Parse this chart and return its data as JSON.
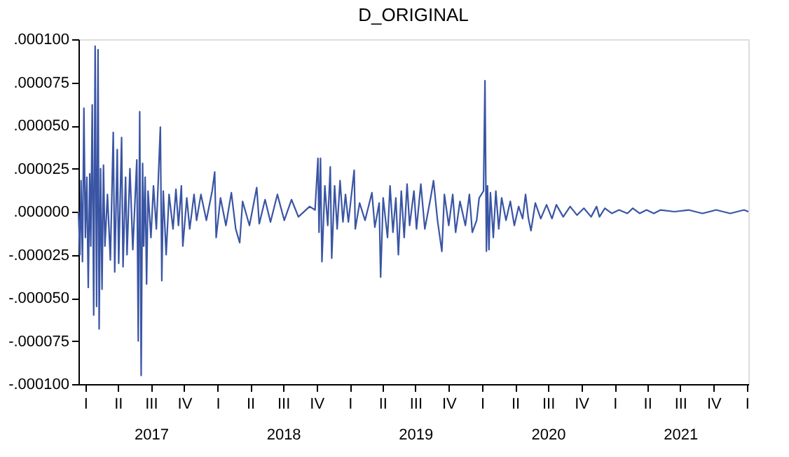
{
  "chart_data": {
    "type": "line",
    "title": "D_ORIGINAL",
    "x": [
      "2016-12-13",
      "2016-12-17",
      "2016-12-20",
      "2016-12-24",
      "2016-12-28",
      "2017-01-01",
      "2017-01-05",
      "2017-01-09",
      "2017-01-13",
      "2017-01-16",
      "2017-01-20",
      "2017-01-24",
      "2017-01-28",
      "2017-02-01",
      "2017-02-05",
      "2017-02-08",
      "2017-02-12",
      "2017-02-16",
      "2017-02-20",
      "2017-02-24",
      "2017-03-03",
      "2017-03-11",
      "2017-03-19",
      "2017-03-23",
      "2017-03-30",
      "2017-04-03",
      "2017-04-11",
      "2017-04-15",
      "2017-04-22",
      "2017-04-26",
      "2017-05-04",
      "2017-05-12",
      "2017-05-23",
      "2017-05-27",
      "2017-05-31",
      "2017-06-04",
      "2017-06-08",
      "2017-06-11",
      "2017-06-15",
      "2017-06-19",
      "2017-06-23",
      "2017-07-01",
      "2017-07-08",
      "2017-07-16",
      "2017-07-27",
      "2017-07-31",
      "2017-08-04",
      "2017-08-12",
      "2017-08-20",
      "2017-08-31",
      "2017-09-08",
      "2017-09-15",
      "2017-09-23",
      "2017-09-27",
      "2017-10-08",
      "2017-10-16",
      "2017-10-28",
      "2017-11-04",
      "2017-11-16",
      "2017-12-01",
      "2017-12-17",
      "2017-12-24",
      "2017-12-28",
      "2018-01-09",
      "2018-01-24",
      "2018-02-08",
      "2018-02-20",
      "2018-03-03",
      "2018-03-11",
      "2018-03-30",
      "2018-04-19",
      "2018-04-26",
      "2018-05-12",
      "2018-05-27",
      "2018-06-15",
      "2018-07-04",
      "2018-07-24",
      "2018-08-12",
      "2018-09-12",
      "2018-09-27",
      "2018-10-05",
      "2018-10-08",
      "2018-10-12",
      "2018-10-16",
      "2018-10-24",
      "2018-11-01",
      "2018-11-08",
      "2018-11-12",
      "2018-11-20",
      "2018-11-27",
      "2018-12-05",
      "2018-12-13",
      "2018-12-20",
      "2018-12-28",
      "2019-01-13",
      "2019-01-16",
      "2019-01-28",
      "2019-02-12",
      "2019-03-03",
      "2019-03-11",
      "2019-03-23",
      "2019-03-27",
      "2019-04-03",
      "2019-04-15",
      "2019-04-22",
      "2019-04-30",
      "2019-05-08",
      "2019-05-15",
      "2019-05-23",
      "2019-05-31",
      "2019-06-08",
      "2019-06-15",
      "2019-06-27",
      "2019-07-04",
      "2019-07-16",
      "2019-07-27",
      "2019-08-12",
      "2019-08-20",
      "2019-08-31",
      "2019-09-12",
      "2019-09-19",
      "2019-10-01",
      "2019-10-12",
      "2019-10-20",
      "2019-11-01",
      "2019-11-16",
      "2019-11-27",
      "2019-12-05",
      "2019-12-17",
      "2019-12-24",
      "2020-01-05",
      "2020-01-09",
      "2020-01-13",
      "2020-01-16",
      "2020-01-20",
      "2020-01-24",
      "2020-02-01",
      "2020-02-08",
      "2020-02-16",
      "2020-02-24",
      "2020-03-07",
      "2020-03-19",
      "2020-03-30",
      "2020-04-11",
      "2020-04-22",
      "2020-04-30",
      "2020-05-08",
      "2020-05-15",
      "2020-05-27",
      "2020-06-11",
      "2020-06-27",
      "2020-07-12",
      "2020-07-24",
      "2020-08-12",
      "2020-08-31",
      "2020-09-19",
      "2020-10-08",
      "2020-10-28",
      "2020-11-12",
      "2020-11-20",
      "2020-12-05",
      "2020-12-24",
      "2021-01-13",
      "2021-02-05",
      "2021-02-20",
      "2021-03-11",
      "2021-03-30",
      "2021-04-19",
      "2021-05-08",
      "2021-06-15",
      "2021-07-24",
      "2021-08-31",
      "2021-10-08",
      "2021-11-16",
      "2021-12-24",
      "2022-01-05"
    ],
    "series": [
      {
        "color": "#3a55a4",
        "values": [
          0,
          -2.5e-05,
          1.8e-05,
          -2.9e-05,
          6e-05,
          -1.5e-05,
          2e-05,
          -4.4e-05,
          2.2e-05,
          -2e-05,
          6.2e-05,
          -6e-05,
          9.6e-05,
          -5.5e-05,
          9.4e-05,
          -6.8e-05,
          2.5e-05,
          -4.5e-05,
          2.7e-05,
          -2e-05,
          1e-05,
          -2.8e-05,
          4.6e-05,
          -3.5e-05,
          3.6e-05,
          -3e-05,
          4.3e-05,
          -3.2e-05,
          2e-05,
          -2.5e-05,
          2.5e-05,
          -2.2e-05,
          3e-05,
          -7.5e-05,
          5.8e-05,
          -9.5e-05,
          2.8e-05,
          -2e-05,
          2e-05,
          -4.2e-05,
          1.2e-05,
          -1.5e-05,
          1.5e-05,
          -1e-05,
          4.9e-05,
          -4e-05,
          1.2e-05,
          -2.5e-05,
          1e-05,
          -1e-05,
          1.3e-05,
          -8e-06,
          1.5e-05,
          -2e-05,
          8e-06,
          -1e-05,
          1e-05,
          -5e-06,
          1e-05,
          -5e-06,
          1.2e-05,
          2.3e-05,
          -1.5e-05,
          8e-06,
          -8e-06,
          1.1e-05,
          -1e-05,
          -1.8e-05,
          6e-06,
          -8e-06,
          1.4e-05,
          -7e-06,
          7e-06,
          -6e-06,
          1e-05,
          -5e-06,
          7e-06,
          -3e-06,
          3e-06,
          1e-06,
          3.1e-05,
          -1.2e-05,
          3.1e-05,
          -2.9e-05,
          1.5e-05,
          -8e-06,
          2.6e-05,
          -2.7e-05,
          1.5e-05,
          -1e-05,
          1.8e-05,
          -6e-06,
          1e-05,
          -6e-06,
          2.4e-05,
          -1e-05,
          5e-06,
          -5e-06,
          1.1e-05,
          -9e-06,
          5e-06,
          -3.8e-05,
          8e-06,
          -1.5e-05,
          1.5e-05,
          -1.2e-05,
          8e-06,
          -2.5e-05,
          1.2e-05,
          -1.5e-05,
          1.6e-05,
          -8e-06,
          1.2e-05,
          -1e-05,
          1.6e-05,
          -1e-05,
          8e-06,
          1.8e-05,
          -5e-06,
          -2.3e-05,
          1e-05,
          -8e-06,
          1e-05,
          -1.2e-05,
          6e-06,
          -8e-06,
          1e-05,
          -1.2e-05,
          -5e-06,
          8e-06,
          1.2e-05,
          7.6e-05,
          -2.3e-05,
          1.5e-05,
          -2.2e-05,
          1.1e-05,
          -1.5e-05,
          1.2e-05,
          -1e-05,
          8e-06,
          -5e-06,
          6e-06,
          -8e-06,
          3e-06,
          -4e-06,
          1e-05,
          -4e-06,
          -1.1e-05,
          5e-06,
          -4e-06,
          4e-06,
          -4e-06,
          4e-06,
          -3e-06,
          3e-06,
          -2e-06,
          2e-06,
          -3e-06,
          3e-06,
          -3e-06,
          2e-06,
          -1e-06,
          1e-06,
          -1e-06,
          2e-06,
          -1e-06,
          1e-06,
          -1e-06,
          1e-06,
          0,
          1e-06,
          -1e-06,
          1e-06,
          -1e-06,
          1e-06,
          0
        ]
      }
    ],
    "xlim": [
      "2016-12-13",
      "2022-01-05"
    ],
    "xticks": [
      {
        "value": "2017-01-01",
        "label": "I"
      },
      {
        "value": "2017-04-01",
        "label": "II"
      },
      {
        "value": "2017-07-01",
        "label": "III\n2017"
      },
      {
        "value": "2017-10-01",
        "label": "IV"
      },
      {
        "value": "2018-01-01",
        "label": "I"
      },
      {
        "value": "2018-04-01",
        "label": "II"
      },
      {
        "value": "2018-07-01",
        "label": "III\n2018"
      },
      {
        "value": "2018-10-01",
        "label": "IV"
      },
      {
        "value": "2019-01-01",
        "label": "I"
      },
      {
        "value": "2019-04-01",
        "label": "II"
      },
      {
        "value": "2019-07-01",
        "label": "III\n2019"
      },
      {
        "value": "2019-10-01",
        "label": "IV"
      },
      {
        "value": "2020-01-01",
        "label": "I"
      },
      {
        "value": "2020-04-01",
        "label": "II"
      },
      {
        "value": "2020-07-01",
        "label": "III\n2020"
      },
      {
        "value": "2020-10-01",
        "label": "IV"
      },
      {
        "value": "2021-01-01",
        "label": "I"
      },
      {
        "value": "2021-04-01",
        "label": "II"
      },
      {
        "value": "2021-07-01",
        "label": "III\n2021"
      },
      {
        "value": "2021-10-01",
        "label": "IV"
      },
      {
        "value": "2022-01-01",
        "label": "I"
      }
    ],
    "ylim": [
      -0.0001,
      0.0001
    ],
    "yticks": [
      {
        "value": 0.0001,
        "label": ".000100"
      },
      {
        "value": 7.5e-05,
        "label": ".000075"
      },
      {
        "value": 5e-05,
        "label": ".000050"
      },
      {
        "value": 2.5e-05,
        "label": ".000025"
      },
      {
        "value": 0,
        "label": ".000000"
      },
      {
        "value": -2.5e-05,
        "label": "-.000025"
      },
      {
        "value": -5e-05,
        "label": "-.000050"
      },
      {
        "value": -7.5e-05,
        "label": "-.000075"
      },
      {
        "value": -0.0001,
        "label": "-.000100"
      }
    ],
    "grid": false,
    "line_style": "solid",
    "marker": "none"
  }
}
